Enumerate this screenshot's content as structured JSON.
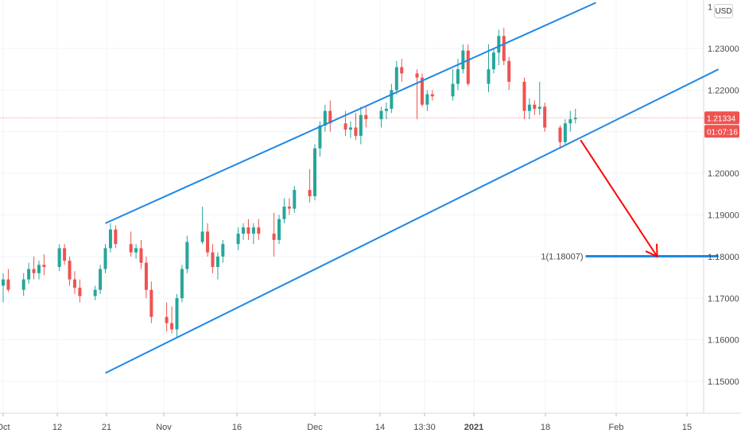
{
  "currency": "USD",
  "colors": {
    "bull": "#26a69a",
    "bear": "#ef5350",
    "channel": "#1e88e5",
    "arrow": "#ff0000",
    "price_badge": "#ef5350",
    "grid": "#f0f3fa"
  },
  "price_badge": {
    "price": "1.21334",
    "countdown": "01:07:16"
  },
  "target": {
    "label": "1(1.18007)",
    "value": 1.18007
  },
  "chart_data": {
    "type": "candlestick",
    "title": "",
    "xlabel": "",
    "ylabel": "",
    "ylim": [
      1.1435,
      1.2405
    ],
    "yticks": [
      "1.15000",
      "1.16000",
      "1.17000",
      "1.18000",
      "1.19000",
      "1.20000",
      "1.21000",
      "1.22000",
      "1.23000"
    ],
    "xticks": [
      "Oct",
      "12",
      "21",
      "Nov",
      "16",
      "Dec",
      "14",
      "13:30",
      "2021",
      "18",
      "Feb",
      "15"
    ],
    "last_price": 1.21334,
    "series": [
      {
        "x": "Oct 1",
        "o": 1.173,
        "h": 1.176,
        "l": 1.169,
        "c": 1.1745
      },
      {
        "x": "Oct 2",
        "o": 1.1745,
        "h": 1.177,
        "l": 1.1715,
        "c": 1.172
      },
      {
        "x": "Oct 5",
        "o": 1.172,
        "h": 1.176,
        "l": 1.1705,
        "c": 1.1745
      },
      {
        "x": "Oct 6",
        "o": 1.1745,
        "h": 1.1785,
        "l": 1.1735,
        "c": 1.177
      },
      {
        "x": "Oct 7",
        "o": 1.177,
        "h": 1.18,
        "l": 1.1745,
        "c": 1.176
      },
      {
        "x": "Oct 8",
        "o": 1.176,
        "h": 1.179,
        "l": 1.1745,
        "c": 1.178
      },
      {
        "x": "Oct 9",
        "o": 1.178,
        "h": 1.1805,
        "l": 1.1755,
        "c": 1.1775
      },
      {
        "x": "Oct 12",
        "o": 1.1775,
        "h": 1.183,
        "l": 1.1765,
        "c": 1.182
      },
      {
        "x": "Oct 13",
        "o": 1.182,
        "h": 1.183,
        "l": 1.178,
        "c": 1.179
      },
      {
        "x": "Oct 14",
        "o": 1.179,
        "h": 1.18,
        "l": 1.173,
        "c": 1.1745
      },
      {
        "x": "Oct 15",
        "o": 1.1745,
        "h": 1.1765,
        "l": 1.171,
        "c": 1.1725
      },
      {
        "x": "Oct 16",
        "o": 1.1725,
        "h": 1.1745,
        "l": 1.169,
        "c": 1.1705
      },
      {
        "x": "Oct 19",
        "o": 1.1705,
        "h": 1.173,
        "l": 1.1695,
        "c": 1.172
      },
      {
        "x": "Oct 20",
        "o": 1.172,
        "h": 1.178,
        "l": 1.171,
        "c": 1.177
      },
      {
        "x": "Oct 21",
        "o": 1.177,
        "h": 1.183,
        "l": 1.176,
        "c": 1.182
      },
      {
        "x": "Oct 22",
        "o": 1.182,
        "h": 1.188,
        "l": 1.181,
        "c": 1.1865
      },
      {
        "x": "Oct 23",
        "o": 1.1865,
        "h": 1.1875,
        "l": 1.182,
        "c": 1.183
      },
      {
        "x": "Oct 26",
        "o": 1.183,
        "h": 1.186,
        "l": 1.18,
        "c": 1.181
      },
      {
        "x": "Oct 27",
        "o": 1.181,
        "h": 1.183,
        "l": 1.1795,
        "c": 1.182
      },
      {
        "x": "Oct 28",
        "o": 1.182,
        "h": 1.184,
        "l": 1.177,
        "c": 1.1785
      },
      {
        "x": "Oct 29",
        "o": 1.1785,
        "h": 1.18,
        "l": 1.17,
        "c": 1.172
      },
      {
        "x": "Oct 30",
        "o": 1.172,
        "h": 1.174,
        "l": 1.164,
        "c": 1.1655
      },
      {
        "x": "Nov 2",
        "o": 1.1655,
        "h": 1.169,
        "l": 1.162,
        "c": 1.164
      },
      {
        "x": "Nov 3",
        "o": 1.164,
        "h": 1.168,
        "l": 1.1615,
        "c": 1.1625
      },
      {
        "x": "Nov 4",
        "o": 1.1625,
        "h": 1.171,
        "l": 1.1605,
        "c": 1.17
      },
      {
        "x": "Nov 5",
        "o": 1.17,
        "h": 1.178,
        "l": 1.169,
        "c": 1.177
      },
      {
        "x": "Nov 6",
        "o": 1.177,
        "h": 1.185,
        "l": 1.176,
        "c": 1.1835
      },
      {
        "x": "Nov 9",
        "o": 1.1835,
        "h": 1.192,
        "l": 1.183,
        "c": 1.186
      },
      {
        "x": "Nov 10",
        "o": 1.186,
        "h": 1.188,
        "l": 1.18,
        "c": 1.181
      },
      {
        "x": "Nov 11",
        "o": 1.181,
        "h": 1.183,
        "l": 1.176,
        "c": 1.1775
      },
      {
        "x": "Nov 12",
        "o": 1.1775,
        "h": 1.181,
        "l": 1.1745,
        "c": 1.18
      },
      {
        "x": "Nov 13",
        "o": 1.18,
        "h": 1.184,
        "l": 1.1785,
        "c": 1.183
      },
      {
        "x": "Nov 16",
        "o": 1.183,
        "h": 1.187,
        "l": 1.1815,
        "c": 1.1855
      },
      {
        "x": "Nov 17",
        "o": 1.1855,
        "h": 1.188,
        "l": 1.184,
        "c": 1.187
      },
      {
        "x": "Nov 18",
        "o": 1.187,
        "h": 1.189,
        "l": 1.184,
        "c": 1.1855
      },
      {
        "x": "Nov 19",
        "o": 1.1855,
        "h": 1.188,
        "l": 1.183,
        "c": 1.187
      },
      {
        "x": "Nov 20",
        "o": 1.187,
        "h": 1.189,
        "l": 1.184,
        "c": 1.1855
      },
      {
        "x": "Nov 23",
        "o": 1.1855,
        "h": 1.1905,
        "l": 1.18,
        "c": 1.184
      },
      {
        "x": "Nov 24",
        "o": 1.184,
        "h": 1.19,
        "l": 1.183,
        "c": 1.189
      },
      {
        "x": "Nov 25",
        "o": 1.189,
        "h": 1.194,
        "l": 1.188,
        "c": 1.192
      },
      {
        "x": "Nov 26",
        "o": 1.192,
        "h": 1.194,
        "l": 1.19,
        "c": 1.1915
      },
      {
        "x": "Nov 27",
        "o": 1.1915,
        "h": 1.197,
        "l": 1.1905,
        "c": 1.196
      },
      {
        "x": "Nov 30",
        "o": 1.196,
        "h": 1.201,
        "l": 1.193,
        "c": 1.1945
      },
      {
        "x": "Dec 1",
        "o": 1.1945,
        "h": 1.207,
        "l": 1.1935,
        "c": 1.206
      },
      {
        "x": "Dec 2",
        "o": 1.206,
        "h": 1.2125,
        "l": 1.204,
        "c": 1.2115
      },
      {
        "x": "Dec 3",
        "o": 1.2115,
        "h": 1.2165,
        "l": 1.21,
        "c": 1.215
      },
      {
        "x": "Dec 4",
        "o": 1.215,
        "h": 1.2175,
        "l": 1.21,
        "c": 1.212
      },
      {
        "x": "Dec 7",
        "o": 1.212,
        "h": 1.215,
        "l": 1.209,
        "c": 1.2105
      },
      {
        "x": "Dec 8",
        "o": 1.2105,
        "h": 1.2125,
        "l": 1.2085,
        "c": 1.211
      },
      {
        "x": "Dec 9",
        "o": 1.211,
        "h": 1.2145,
        "l": 1.208,
        "c": 1.209
      },
      {
        "x": "Dec 10",
        "o": 1.209,
        "h": 1.216,
        "l": 1.207,
        "c": 1.214
      },
      {
        "x": "Dec 11",
        "o": 1.214,
        "h": 1.216,
        "l": 1.211,
        "c": 1.213
      },
      {
        "x": "Dec 14",
        "o": 1.213,
        "h": 1.216,
        "l": 1.211,
        "c": 1.215
      },
      {
        "x": "Dec 15",
        "o": 1.215,
        "h": 1.217,
        "l": 1.213,
        "c": 1.2155
      },
      {
        "x": "Dec 16",
        "o": 1.2155,
        "h": 1.2215,
        "l": 1.2145,
        "c": 1.22
      },
      {
        "x": "Dec 17",
        "o": 1.22,
        "h": 1.227,
        "l": 1.219,
        "c": 1.2255
      },
      {
        "x": "Dec 18",
        "o": 1.2255,
        "h": 1.2275,
        "l": 1.222,
        "c": 1.224
      },
      {
        "x": "Dec 21",
        "o": 1.224,
        "h": 1.225,
        "l": 1.213,
        "c": 1.223
      },
      {
        "x": "Dec 22",
        "o": 1.223,
        "h": 1.224,
        "l": 1.216,
        "c": 1.2165
      },
      {
        "x": "Dec 23",
        "o": 1.2165,
        "h": 1.22,
        "l": 1.215,
        "c": 1.219
      },
      {
        "x": "Dec 24",
        "o": 1.219,
        "h": 1.22,
        "l": 1.2175,
        "c": 1.2185
      },
      {
        "x": "Dec 28",
        "o": 1.2185,
        "h": 1.225,
        "l": 1.2175,
        "c": 1.2215
      },
      {
        "x": "Dec 29",
        "o": 1.2215,
        "h": 1.2275,
        "l": 1.22,
        "c": 1.225
      },
      {
        "x": "Dec 30",
        "o": 1.225,
        "h": 1.231,
        "l": 1.224,
        "c": 1.2295
      },
      {
        "x": "Dec 31",
        "o": 1.2295,
        "h": 1.231,
        "l": 1.221,
        "c": 1.2215
      },
      {
        "x": "Jan 4",
        "o": 1.2215,
        "h": 1.231,
        "l": 1.2195,
        "c": 1.225
      },
      {
        "x": "Jan 5",
        "o": 1.225,
        "h": 1.23,
        "l": 1.224,
        "c": 1.229
      },
      {
        "x": "Jan 6",
        "o": 1.229,
        "h": 1.2345,
        "l": 1.226,
        "c": 1.233
      },
      {
        "x": "Jan 7",
        "o": 1.233,
        "h": 1.235,
        "l": 1.226,
        "c": 1.227
      },
      {
        "x": "Jan 8",
        "o": 1.227,
        "h": 1.228,
        "l": 1.22,
        "c": 1.222
      },
      {
        "x": "Jan 11",
        "o": 1.222,
        "h": 1.223,
        "l": 1.213,
        "c": 1.215
      },
      {
        "x": "Jan 12",
        "o": 1.215,
        "h": 1.218,
        "l": 1.213,
        "c": 1.2165
      },
      {
        "x": "Jan 13",
        "o": 1.2165,
        "h": 1.2175,
        "l": 1.214,
        "c": 1.2155
      },
      {
        "x": "Jan 14",
        "o": 1.2155,
        "h": 1.222,
        "l": 1.214,
        "c": 1.216
      },
      {
        "x": "Jan 15",
        "o": 1.216,
        "h": 1.217,
        "l": 1.21,
        "c": 1.211
      },
      {
        "x": "Jan 18",
        "o": 1.211,
        "h": 1.2115,
        "l": 1.206,
        "c": 1.2075
      },
      {
        "x": "Jan 19",
        "o": 1.2075,
        "h": 1.213,
        "l": 1.207,
        "c": 1.212
      },
      {
        "x": "Jan 20",
        "o": 1.212,
        "h": 1.215,
        "l": 1.21,
        "c": 1.213
      },
      {
        "x": "Jan 21",
        "o": 1.213,
        "h": 1.2155,
        "l": 1.212,
        "c": 1.2133
      }
    ],
    "drawings": {
      "channel_upper": [
        {
          "date": "Oct 21",
          "price": 1.188
        },
        {
          "date": "Jan 25",
          "price": 1.241
        }
      ],
      "channel_lower": [
        {
          "date": "Oct 21",
          "price": 1.152
        },
        {
          "date": "Feb 18",
          "price": 1.225
        }
      ],
      "arrow": [
        {
          "date": "Jan 22",
          "price": 1.208
        },
        {
          "date": "Feb 6",
          "price": 1.18
        }
      ],
      "target_line": {
        "from": "Jan 23",
        "to": "Feb 18",
        "price": 1.18007
      }
    }
  }
}
